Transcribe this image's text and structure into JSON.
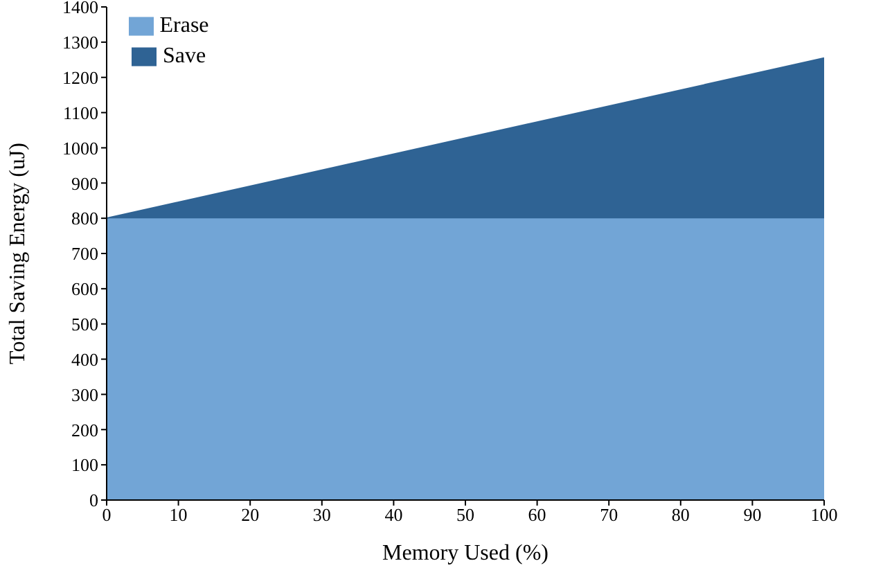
{
  "chart_data": {
    "type": "area",
    "stacked": true,
    "xlabel": "Memory Used (%)",
    "ylabel": "Total Saving Energy (uJ)",
    "x": [
      0,
      100
    ],
    "series": [
      {
        "name": "Erase",
        "color": "#72a5d6",
        "values": [
          800,
          800
        ]
      },
      {
        "name": "Save",
        "color": "#2f6394",
        "values": [
          0,
          455
        ]
      }
    ],
    "xlim": [
      0,
      100
    ],
    "xticks": [
      0,
      10,
      20,
      30,
      40,
      50,
      60,
      70,
      80,
      90,
      100
    ],
    "ylim": [
      0,
      1400
    ],
    "yticks": [
      0,
      100,
      200,
      300,
      400,
      500,
      600,
      700,
      800,
      900,
      1000,
      1100,
      1200,
      1300,
      1400
    ],
    "legend": "top left"
  }
}
